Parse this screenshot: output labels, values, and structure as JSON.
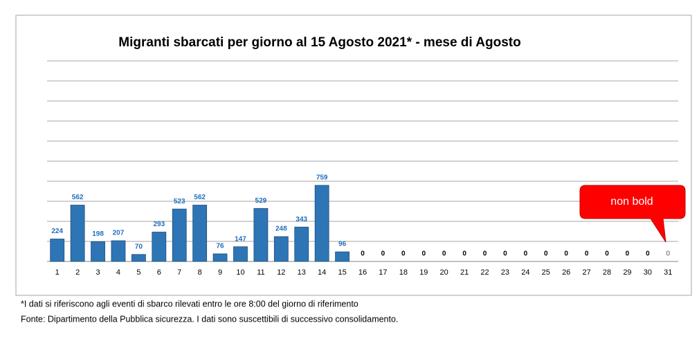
{
  "chart_data": {
    "type": "bar",
    "title": "Migranti sbarcati per giorno al 15 Agosto 2021* - mese di Agosto",
    "categories": [
      "1",
      "2",
      "3",
      "4",
      "5",
      "6",
      "7",
      "8",
      "9",
      "10",
      "11",
      "12",
      "13",
      "14",
      "15",
      "16",
      "17",
      "18",
      "19",
      "20",
      "21",
      "22",
      "23",
      "24",
      "25",
      "26",
      "27",
      "28",
      "29",
      "30",
      "31"
    ],
    "values": [
      224,
      562,
      198,
      207,
      70,
      293,
      523,
      562,
      76,
      147,
      529,
      248,
      343,
      759,
      96,
      0,
      0,
      0,
      0,
      0,
      0,
      0,
      0,
      0,
      0,
      0,
      0,
      0,
      0,
      0,
      0
    ],
    "color": "#2e75b6",
    "ylim": [
      0,
      2000
    ],
    "yticks": [
      0,
      200,
      400,
      600,
      800,
      1000,
      1200,
      1400,
      1600,
      1800,
      2000
    ],
    "grid": true,
    "annotation": "non bold",
    "footnotes": [
      "*I dati si riferiscono agli eventi di sbarco rilevati entro le ore 8:00 del giorno di riferimento",
      "Fonte: Dipartimento della Pubblica sicurezza. I dati sono suscettibili di successivo consolidamento."
    ]
  }
}
